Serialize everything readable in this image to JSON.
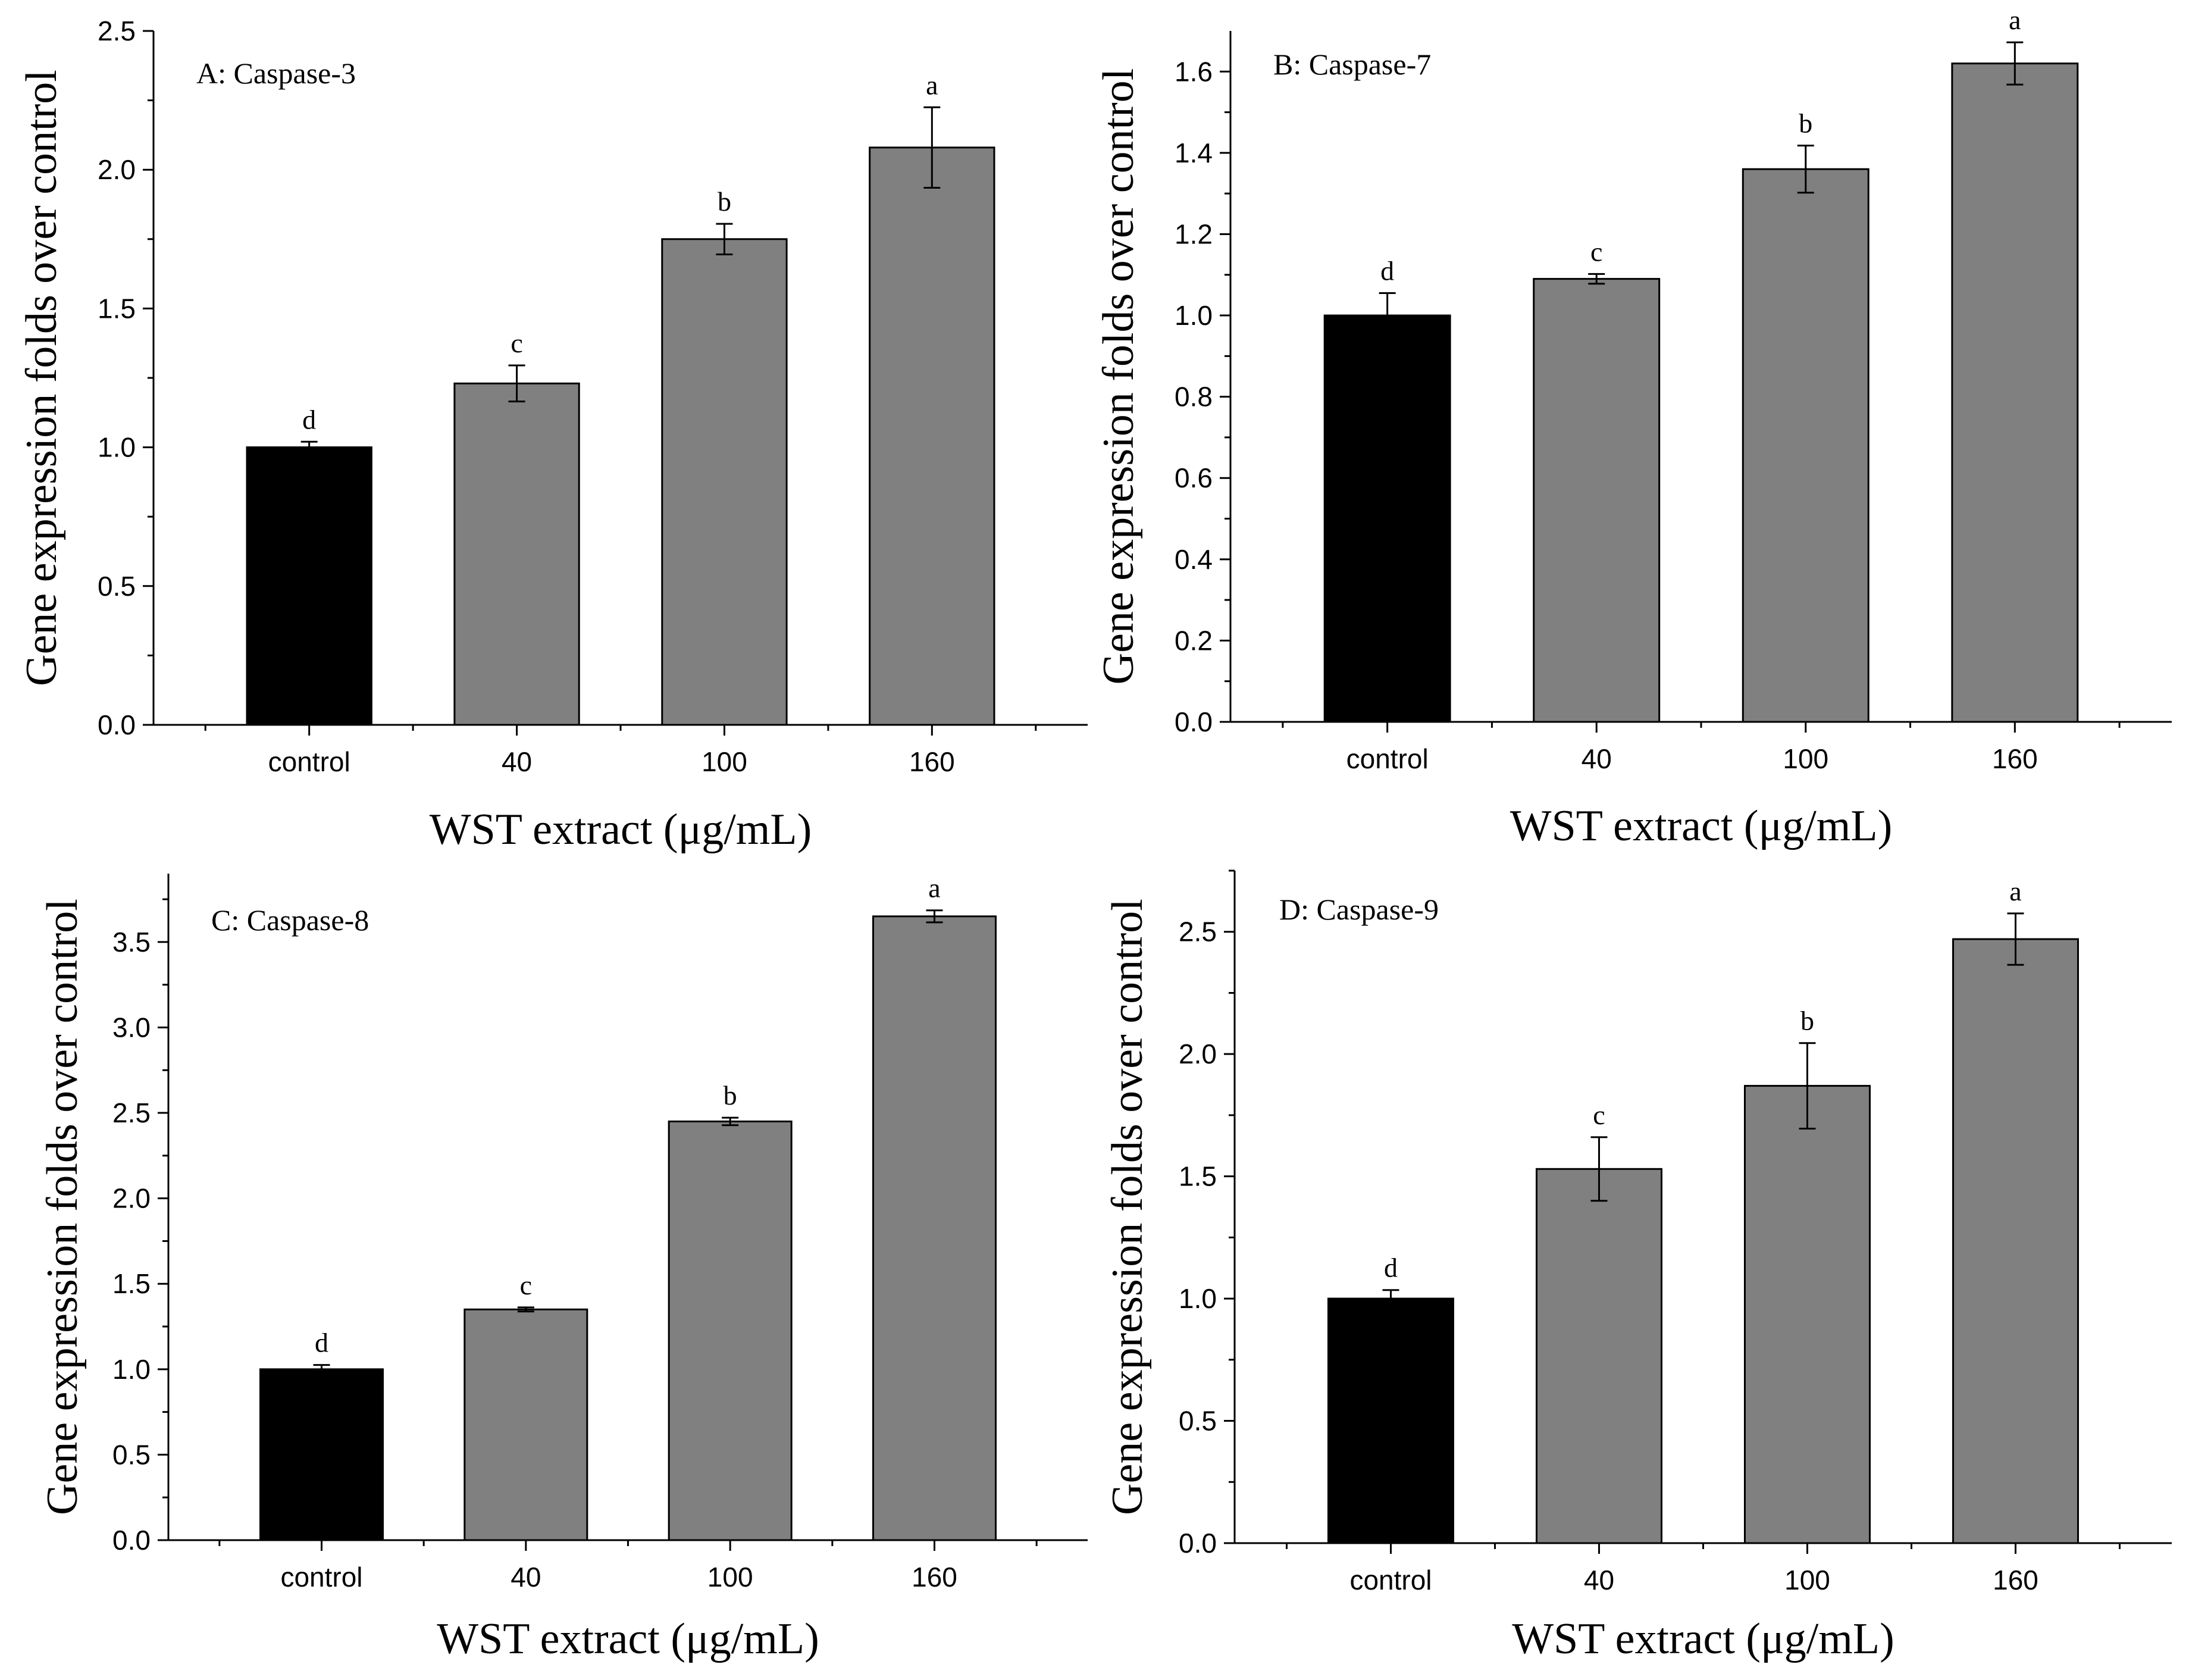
{
  "colors": {
    "control_bar": "#000000",
    "treatment_bar": "#808080",
    "axis": "#000000",
    "background": "#ffffff"
  },
  "chart_data": [
    {
      "type": "bar",
      "title": "A: Caspase-3",
      "xlabel": "WST extract (μg/mL)",
      "ylabel": "Gene expression folds over control",
      "categories": [
        "control",
        "40",
        "100",
        "160"
      ],
      "values": [
        1.0,
        1.23,
        1.75,
        2.08
      ],
      "errors": [
        0.02,
        0.065,
        0.055,
        0.145
      ],
      "significance": [
        "d",
        "c",
        "b",
        "a"
      ],
      "ylim": [
        0,
        2.5
      ],
      "yticks": [
        0.0,
        0.5,
        1.0,
        1.5,
        2.0,
        2.5
      ],
      "ytick_labels": [
        "0.0",
        "0.5",
        "1.0",
        "1.5",
        "2.0",
        "2.5"
      ],
      "grid": false,
      "legend": "none"
    },
    {
      "type": "bar",
      "title": "B: Caspase-7",
      "xlabel": "WST extract (μg/mL)",
      "ylabel": "Gene expression folds over control",
      "categories": [
        "control",
        "40",
        "100",
        "160"
      ],
      "values": [
        1.0,
        1.09,
        1.36,
        1.62
      ],
      "errors": [
        0.055,
        0.012,
        0.058,
        0.052
      ],
      "significance": [
        "d",
        "c",
        "b",
        "a"
      ],
      "ylim": [
        0,
        1.7
      ],
      "yticks": [
        0.0,
        0.2,
        0.4,
        0.6,
        0.8,
        1.0,
        1.2,
        1.4,
        1.6
      ],
      "ytick_labels": [
        "0.0",
        "0.2",
        "0.4",
        "0.6",
        "0.8",
        "1.0",
        "1.2",
        "1.4",
        "1.6"
      ],
      "grid": false,
      "legend": "none"
    },
    {
      "type": "bar",
      "title": "C: Caspase-8",
      "xlabel": "WST extract (μg/mL)",
      "ylabel": "Gene expression folds over control",
      "categories": [
        "control",
        "40",
        "100",
        "160"
      ],
      "values": [
        1.0,
        1.35,
        2.45,
        3.65
      ],
      "errors": [
        0.025,
        0.012,
        0.022,
        0.035
      ],
      "significance": [
        "d",
        "c",
        "b",
        "a"
      ],
      "ylim": [
        0,
        3.9
      ],
      "yticks": [
        0.0,
        0.5,
        1.0,
        1.5,
        2.0,
        2.5,
        3.0,
        3.5
      ],
      "ytick_labels": [
        "0.0",
        "0.5",
        "1.0",
        "1.5",
        "2.0",
        "2.5",
        "3.0",
        "3.5"
      ],
      "grid": false,
      "legend": "none"
    },
    {
      "type": "bar",
      "title": "D: Caspase-9",
      "xlabel": "WST extract (μg/mL)",
      "ylabel": "Gene expression folds over control",
      "categories": [
        "control",
        "40",
        "100",
        "160"
      ],
      "values": [
        1.0,
        1.53,
        1.87,
        2.47
      ],
      "errors": [
        0.035,
        0.13,
        0.175,
        0.105
      ],
      "significance": [
        "d",
        "c",
        "b",
        "a"
      ],
      "ylim": [
        0,
        2.75
      ],
      "yticks": [
        0.0,
        0.5,
        1.0,
        1.5,
        2.0,
        2.5
      ],
      "ytick_labels": [
        "0.0",
        "0.5",
        "1.0",
        "1.5",
        "2.0",
        "2.5"
      ],
      "grid": false,
      "legend": "none"
    }
  ]
}
